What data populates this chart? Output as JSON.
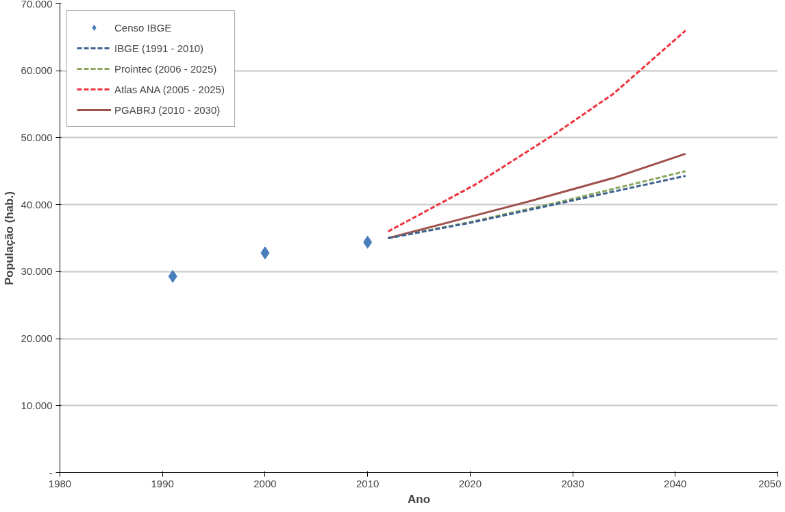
{
  "chart_data": {
    "type": "line",
    "xlabel": "Ano",
    "ylabel": "População (hab.)",
    "xlim": [
      1980,
      2050
    ],
    "xticks": [
      1980,
      1990,
      2000,
      2010,
      2020,
      2030,
      2040,
      2050
    ],
    "ylim": [
      0,
      70000
    ],
    "yticks": [
      {
        "value": 0,
        "label": "-"
      },
      {
        "value": 10000,
        "label": "10.000"
      },
      {
        "value": 20000,
        "label": "20.000"
      },
      {
        "value": 30000,
        "label": "30.000"
      },
      {
        "value": 40000,
        "label": "40.000"
      },
      {
        "value": 50000,
        "label": "50.000"
      },
      {
        "value": 60000,
        "label": "60.000"
      },
      {
        "value": 70000,
        "label": "70.000"
      }
    ],
    "grid": "y",
    "legend": "top left",
    "series": [
      {
        "name": "Censo IBGE",
        "type": "scatter",
        "marker": "diamond",
        "color": "#4a7ebb",
        "x": [
          1991,
          2000,
          2010
        ],
        "values": [
          29300,
          32800,
          34400
        ]
      },
      {
        "name": "IBGE (1991 - 2010)",
        "line_style": "dashed",
        "color": "#3f6293",
        "x": [
          2012,
          2020,
          2029,
          2041
        ],
        "values": [
          35000,
          37300,
          40300,
          44300
        ]
      },
      {
        "name": "Prointec (2006 - 2025)",
        "line_style": "dashed",
        "color": "#8aa65c",
        "x": [
          2012,
          2020,
          2029,
          2041
        ],
        "values": [
          35000,
          37400,
          40500,
          45000
        ]
      },
      {
        "name": "Atlas ANA (2005 - 2025)",
        "line_style": "dashed",
        "color": "#f0323c",
        "x": [
          2012,
          2020.5,
          2028.3,
          2034,
          2041
        ],
        "values": [
          36000,
          43000,
          50600,
          56600,
          66000
        ]
      },
      {
        "name": "PGABRJ (2010 - 2030)",
        "line_style": "solid",
        "color": "#a0504d",
        "x": [
          2012,
          2019,
          2026,
          2034,
          2041
        ],
        "values": [
          35000,
          37800,
          40600,
          44000,
          47600
        ]
      }
    ]
  }
}
